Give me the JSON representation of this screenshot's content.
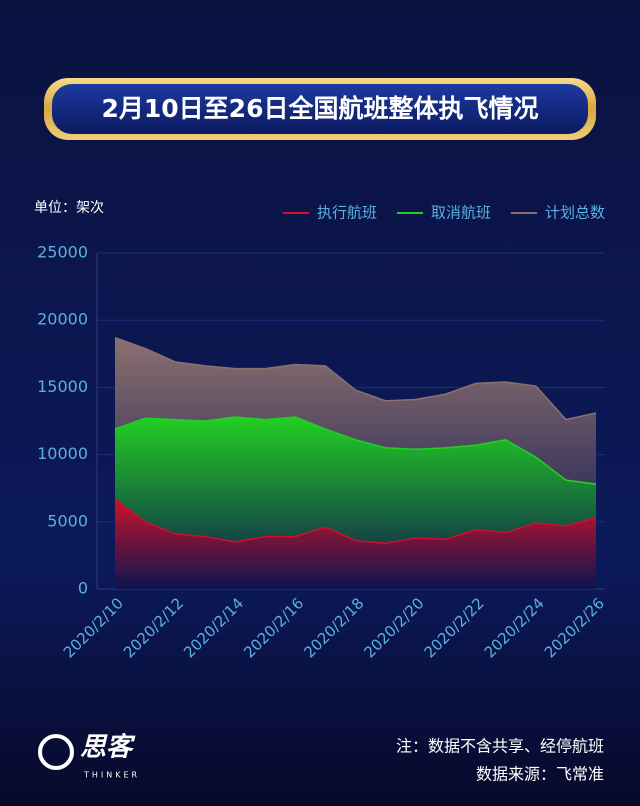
{
  "chart_data": {
    "type": "area",
    "title": "2月10日至26日全国航班整体执飞情况",
    "unit_label": "单位：架次",
    "note": "注：数据不含共享、经停航班",
    "source": "数据来源：飞常准",
    "brand": "思客",
    "brand_en": "THINKER",
    "categories": [
      "2020/2/10",
      null,
      "2020/2/12",
      null,
      "2020/2/14",
      null,
      "2020/2/16",
      null,
      "2020/2/18",
      null,
      "2020/2/20",
      null,
      "2020/2/22",
      null,
      "2020/2/24",
      null,
      "2020/2/26"
    ],
    "series": [
      {
        "name": "计划总数",
        "color": "#8c7070",
        "values": [
          18700,
          17900,
          16900,
          16600,
          16400,
          16400,
          16700,
          16600,
          14800,
          14000,
          14100,
          14500,
          15300,
          15400,
          15100,
          12600,
          13100
        ]
      },
      {
        "name": "取消航班",
        "color": "#22d022",
        "values": [
          11900,
          12700,
          12600,
          12500,
          12800,
          12600,
          12800,
          11900,
          11100,
          10500,
          10400,
          10500,
          10700,
          11100,
          9800,
          8100,
          7800
        ]
      },
      {
        "name": "执行航班",
        "color": "#d0102a",
        "values": [
          6700,
          5000,
          4100,
          3900,
          3500,
          3900,
          3900,
          4600,
          3600,
          3400,
          3800,
          3700,
          4400,
          4200,
          4900,
          4700,
          5300
        ]
      }
    ],
    "ylim": [
      0,
      25000
    ],
    "yticks": [
      0,
      5000,
      10000,
      15000,
      20000,
      25000
    ],
    "grid": true,
    "legend": "top-right"
  }
}
